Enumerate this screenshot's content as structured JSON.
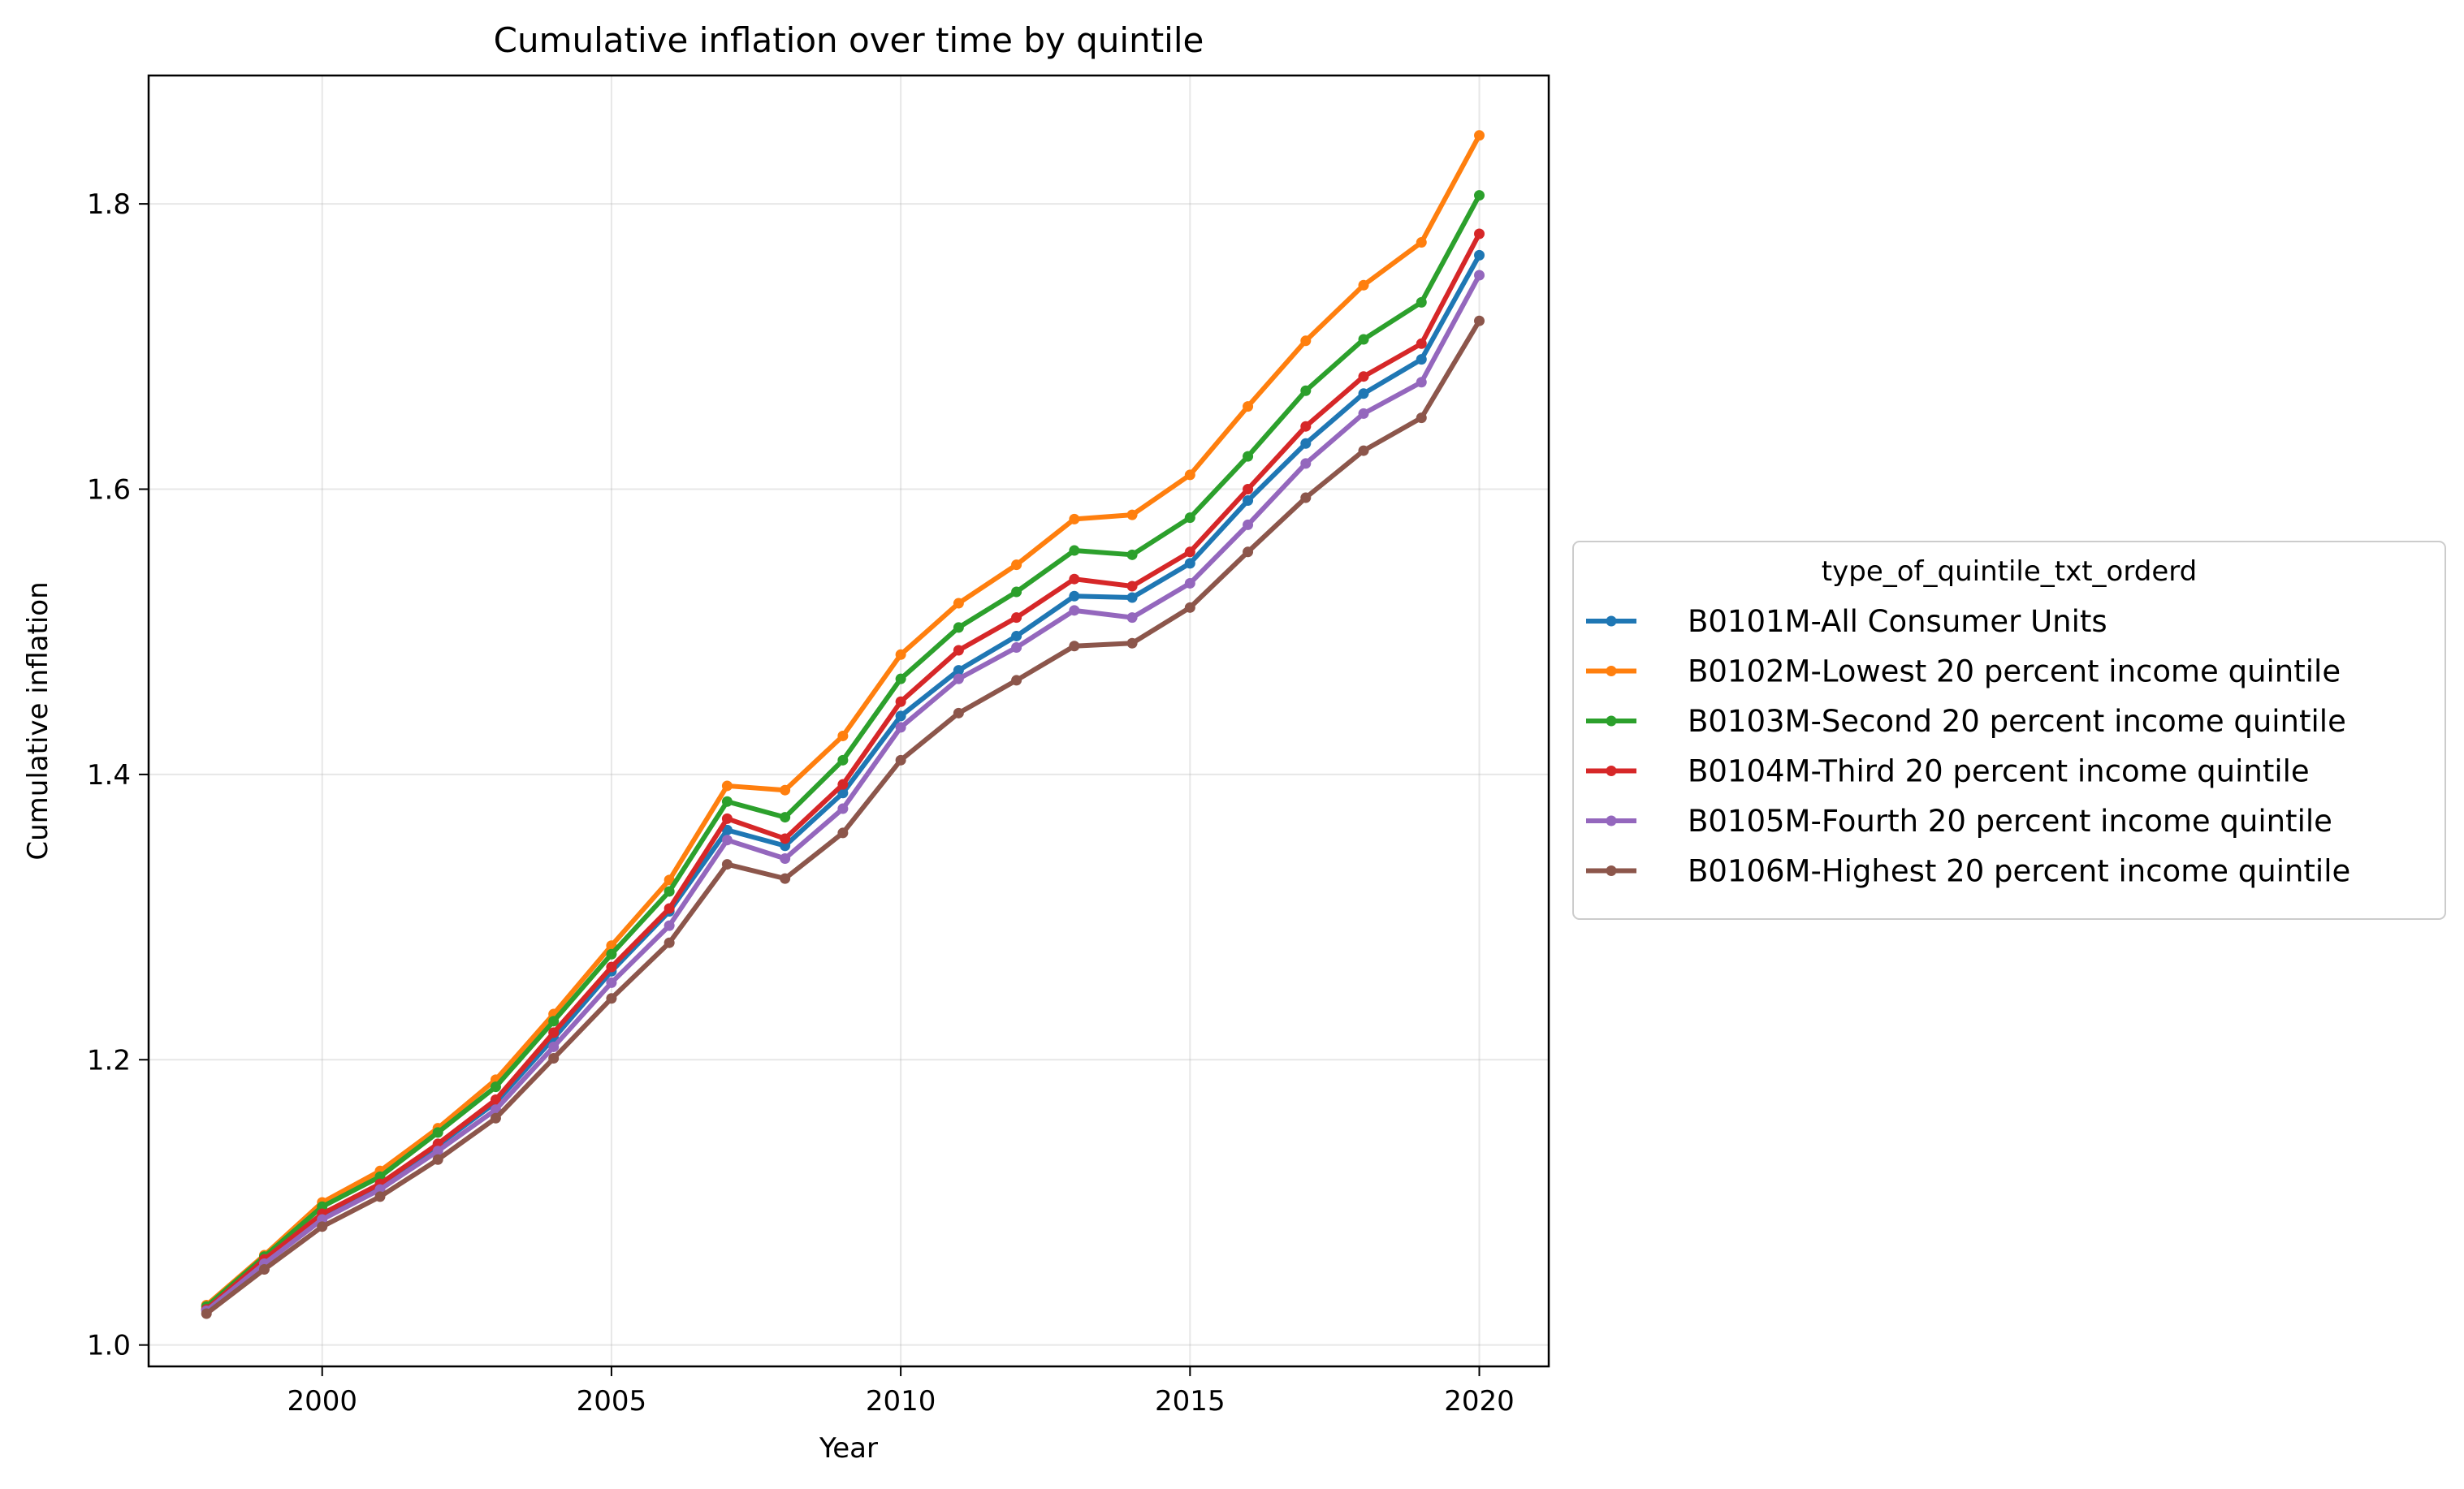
{
  "chart_data": {
    "type": "line",
    "title": "Cumulative inflation over time by quintile",
    "xlabel": "Year",
    "ylabel": "Cumulative inflation",
    "xlim": [
      1997.0,
      2021.2
    ],
    "ylim": [
      0.985,
      1.89
    ],
    "xticks": [
      "2000",
      "2005",
      "2010",
      "2015",
      "2020"
    ],
    "yticks": [
      "1.0",
      "1.2",
      "1.4",
      "1.6",
      "1.8"
    ],
    "grid": true,
    "legend": {
      "title": "type_of_quintile_txt_orderd",
      "placement": "outside-right"
    },
    "x": [
      1998,
      1999,
      2000,
      2001,
      2002,
      2003,
      2004,
      2005,
      2006,
      2007,
      2008,
      2009,
      2010,
      2011,
      2012,
      2013,
      2014,
      2015,
      2016,
      2017,
      2018,
      2019,
      2020
    ],
    "series": [
      {
        "name": "B0101M-All Consumer Units",
        "color": "#1f77b4",
        "values": [
          1.025,
          1.058,
          1.09,
          1.112,
          1.14,
          1.17,
          1.215,
          1.262,
          1.304,
          1.361,
          1.35,
          1.387,
          1.441,
          1.473,
          1.497,
          1.525,
          1.524,
          1.548,
          1.592,
          1.632,
          1.667,
          1.691,
          1.764
        ]
      },
      {
        "name": "B0102M-Lowest 20 percent income quintile",
        "color": "#ff7f0e",
        "values": [
          1.028,
          1.063,
          1.1,
          1.122,
          1.152,
          1.186,
          1.232,
          1.28,
          1.326,
          1.392,
          1.389,
          1.427,
          1.484,
          1.52,
          1.547,
          1.579,
          1.582,
          1.61,
          1.658,
          1.704,
          1.743,
          1.773,
          1.848
        ]
      },
      {
        "name": "B0103M-Second 20 percent income quintile",
        "color": "#2ca02c",
        "values": [
          1.027,
          1.062,
          1.097,
          1.118,
          1.149,
          1.181,
          1.227,
          1.274,
          1.318,
          1.381,
          1.37,
          1.41,
          1.467,
          1.503,
          1.528,
          1.557,
          1.554,
          1.58,
          1.623,
          1.669,
          1.705,
          1.731,
          1.806
        ]
      },
      {
        "name": "B0104M-Third 20 percent income quintile",
        "color": "#d62728",
        "values": [
          1.025,
          1.06,
          1.092,
          1.113,
          1.141,
          1.172,
          1.219,
          1.265,
          1.306,
          1.369,
          1.355,
          1.393,
          1.451,
          1.487,
          1.51,
          1.537,
          1.532,
          1.556,
          1.6,
          1.644,
          1.679,
          1.702,
          1.779
        ]
      },
      {
        "name": "B0105M-Fourth 20 percent income quintile",
        "color": "#9467bd",
        "values": [
          1.024,
          1.057,
          1.088,
          1.109,
          1.136,
          1.165,
          1.209,
          1.254,
          1.294,
          1.354,
          1.341,
          1.376,
          1.433,
          1.467,
          1.489,
          1.515,
          1.51,
          1.534,
          1.575,
          1.618,
          1.653,
          1.675,
          1.75
        ]
      },
      {
        "name": "B0106M-Highest 20 percent income quintile",
        "color": "#8c564b",
        "values": [
          1.022,
          1.053,
          1.083,
          1.104,
          1.13,
          1.159,
          1.201,
          1.243,
          1.282,
          1.337,
          1.327,
          1.359,
          1.41,
          1.443,
          1.466,
          1.49,
          1.492,
          1.517,
          1.556,
          1.594,
          1.627,
          1.65,
          1.718
        ]
      }
    ]
  }
}
